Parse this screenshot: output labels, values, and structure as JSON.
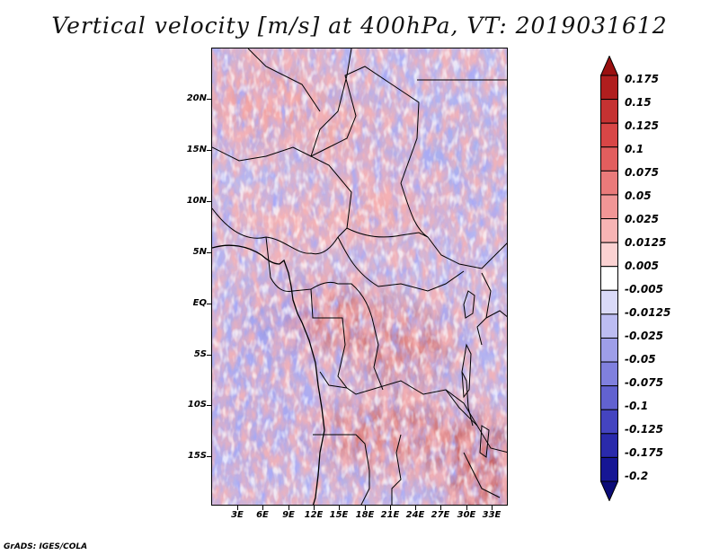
{
  "title": "Vertical velocity [m/s] at 400hPa, VT: 2019031612",
  "credit": "GrADS: IGES/COLA",
  "map": {
    "lat_labels": [
      "20N",
      "15N",
      "10N",
      "5N",
      "EQ",
      "5S",
      "10S",
      "15S"
    ],
    "lon_labels": [
      "3E",
      "6E",
      "9E",
      "12E",
      "15E",
      "18E",
      "21E",
      "24E",
      "27E",
      "30E",
      "33E"
    ],
    "field": "vertical velocity",
    "level": "400hPa"
  },
  "colorbar": {
    "labels": [
      "0.175",
      "0.15",
      "0.125",
      "0.1",
      "0.075",
      "0.05",
      "0.025",
      "0.0125",
      "0.005",
      "-0.005",
      "-0.0125",
      "-0.025",
      "-0.05",
      "-0.075",
      "-0.1",
      "-0.125",
      "-0.175",
      "-0.2"
    ],
    "colors": [
      "#9b1010",
      "#b01e1e",
      "#c53232",
      "#d84646",
      "#e25e5e",
      "#ea7a7a",
      "#f19696",
      "#f7b4b4",
      "#fbd2d2",
      "#ffffff",
      "#dadaf8",
      "#bcbcf2",
      "#9e9ee8",
      "#8080de",
      "#6262d0",
      "#4444c0",
      "#2a2aab",
      "#161694",
      "#0c0c78"
    ]
  }
}
